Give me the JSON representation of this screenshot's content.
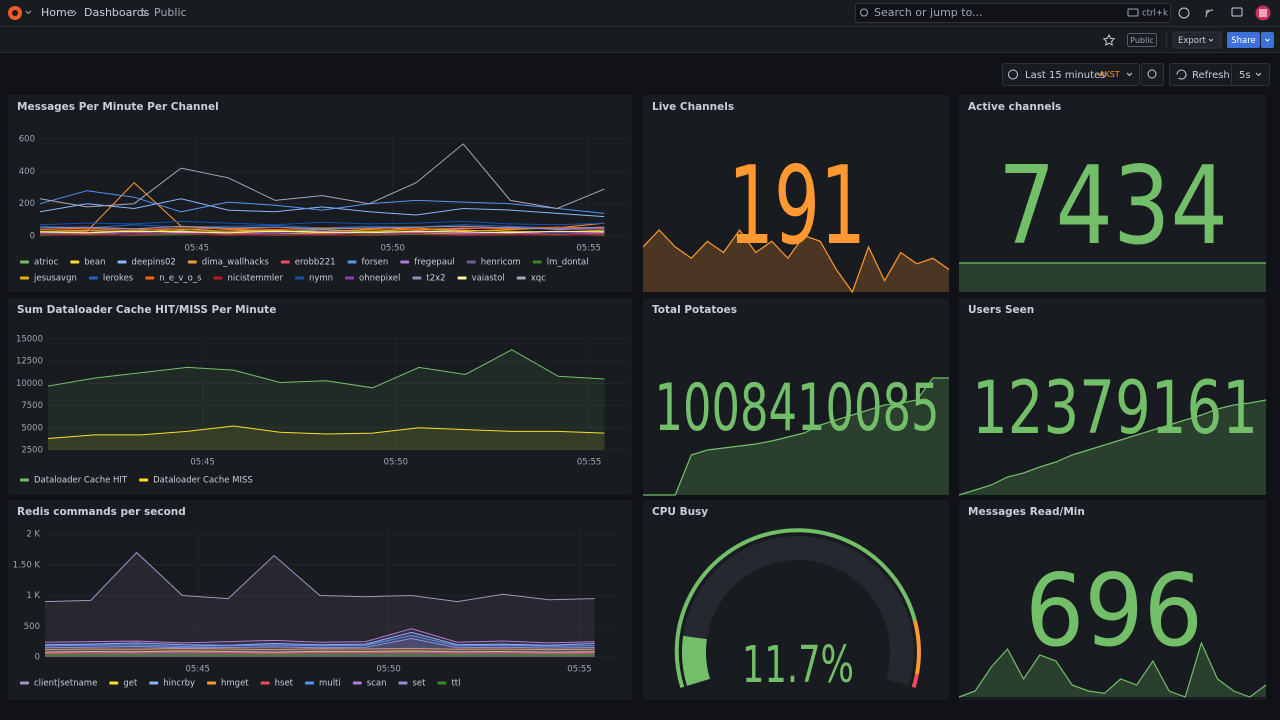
{
  "nav": {
    "breadcrumbs": [
      "Home",
      "Dashboards",
      "Public"
    ],
    "search": "Search or jump to...",
    "shortcut": "ctrl+k"
  },
  "toolbar": {
    "tag": "Public",
    "export": "Export",
    "share": "Share"
  },
  "time": {
    "range": "Last 15 minutes",
    "zone": "AKST",
    "refresh": "Refresh",
    "interval": "5s"
  },
  "panels": [
    {
      "type": "line",
      "title": "Messages Per Minute Per Channel",
      "area": false,
      "x": [
        41,
        42.2,
        43.4,
        44.6,
        45.8,
        47,
        48.2,
        49.4,
        50.6,
        51.8,
        53,
        54.2,
        55.4
      ],
      "xlim": [
        41,
        55.8
      ],
      "xticks": [
        {
          "value": 45,
          "label": "05:45"
        },
        {
          "value": 50,
          "label": "05:50"
        },
        {
          "value": 55,
          "label": "05:55"
        }
      ],
      "ylim": [
        0,
        600
      ],
      "yticks": [
        0,
        200,
        400,
        600
      ],
      "series": [
        {
          "name": "atrioc",
          "color": "#73bf69",
          "values": [
            30,
            25,
            35,
            20,
            30,
            25,
            40,
            30,
            25,
            35,
            30,
            20,
            30
          ]
        },
        {
          "name": "bean",
          "color": "#fade2a",
          "values": [
            20,
            15,
            25,
            30,
            20,
            15,
            20,
            25,
            20,
            15,
            25,
            20,
            15
          ]
        },
        {
          "name": "deepins02",
          "color": "#8ab8ff",
          "values": [
            150,
            200,
            170,
            230,
            160,
            150,
            180,
            150,
            130,
            170,
            160,
            140,
            120
          ]
        },
        {
          "name": "dima_wallhacks",
          "color": "#ff9830",
          "values": [
            20,
            30,
            330,
            60,
            40,
            30,
            30,
            40,
            50,
            30,
            40,
            50,
            80
          ]
        },
        {
          "name": "erobb221",
          "color": "#f2495c",
          "values": [
            10,
            15,
            10,
            20,
            15,
            10,
            15,
            20,
            10,
            15,
            10,
            20,
            15
          ]
        },
        {
          "name": "forsen",
          "color": "#5794f2",
          "values": [
            200,
            280,
            240,
            150,
            210,
            190,
            160,
            200,
            220,
            210,
            200,
            170,
            140
          ]
        },
        {
          "name": "fregepaul",
          "color": "#b877d9",
          "values": [
            40,
            50,
            45,
            35,
            50,
            40,
            45,
            50,
            35,
            45,
            55,
            40,
            45
          ]
        },
        {
          "name": "henricom",
          "color": "#705da0",
          "values": [
            15,
            20,
            10,
            15,
            20,
            15,
            10,
            20,
            15,
            10,
            15,
            20,
            10
          ]
        },
        {
          "name": "lm_dontal",
          "color": "#37872d",
          "values": [
            5,
            10,
            5,
            8,
            10,
            5,
            8,
            5,
            10,
            5,
            8,
            10,
            5
          ]
        },
        {
          "name": "jesusavgn",
          "color": "#e0b400",
          "values": [
            30,
            35,
            25,
            40,
            30,
            35,
            25,
            30,
            40,
            35,
            30,
            25,
            35
          ]
        },
        {
          "name": "lerokes",
          "color": "#1f60c4",
          "values": [
            60,
            50,
            70,
            55,
            60,
            65,
            50,
            60,
            55,
            70,
            60,
            50,
            55
          ]
        },
        {
          "name": "n_e_v_o_s",
          "color": "#fa6400",
          "values": [
            40,
            45,
            35,
            50,
            45,
            40,
            50,
            45,
            40,
            50,
            45,
            55,
            50
          ]
        },
        {
          "name": "nicistemmler",
          "color": "#c4162a",
          "values": [
            10,
            5,
            10,
            15,
            5,
            10,
            5,
            10,
            15,
            5,
            10,
            5,
            10
          ]
        },
        {
          "name": "nymn",
          "color": "#1250b0",
          "values": [
            70,
            80,
            75,
            90,
            80,
            70,
            85,
            75,
            80,
            90,
            75,
            70,
            80
          ]
        },
        {
          "name": "ohnepixel",
          "color": "#8f3bb8",
          "values": [
            20,
            25,
            20,
            15,
            25,
            20,
            30,
            20,
            25,
            20,
            15,
            25,
            20
          ]
        },
        {
          "name": "t2x2",
          "color": "#8f8fb8",
          "values": [
            50,
            55,
            45,
            60,
            50,
            55,
            45,
            50,
            55,
            60,
            50,
            45,
            55
          ]
        },
        {
          "name": "vaiastol",
          "color": "#fff899",
          "values": [
            25,
            20,
            30,
            25,
            20,
            30,
            25,
            20,
            30,
            25,
            20,
            30,
            25
          ]
        },
        {
          "name": "xqc",
          "color": "#a8a8b8",
          "values": [
            230,
            180,
            200,
            420,
            360,
            220,
            250,
            200,
            330,
            570,
            220,
            170,
            290
          ]
        }
      ]
    },
    {
      "type": "line",
      "title": "Sum Dataloader Cache HIT/MISS Per Minute",
      "area": true,
      "x": [
        41,
        42.2,
        43.4,
        44.6,
        45.8,
        47,
        48.2,
        49.4,
        50.6,
        51.8,
        53,
        54.2,
        55.4
      ],
      "xlim": [
        41,
        55.8
      ],
      "xticks": [
        {
          "value": 45,
          "label": "05:45"
        },
        {
          "value": 50,
          "label": "05:50"
        },
        {
          "value": 55,
          "label": "05:55"
        }
      ],
      "ylim": [
        2500,
        15000
      ],
      "yticks": [
        2500,
        5000,
        7500,
        10000,
        12500,
        15000
      ],
      "series": [
        {
          "name": "Dataloader Cache HIT",
          "color": "#73bf69",
          "values": [
            9700,
            10600,
            11200,
            11800,
            11500,
            10100,
            10300,
            9500,
            11800,
            11000,
            13800,
            10800,
            10500
          ]
        },
        {
          "name": "Dataloader Cache MISS",
          "color": "#fade2a",
          "values": [
            3800,
            4200,
            4200,
            4600,
            5200,
            4500,
            4300,
            4400,
            5000,
            4800,
            4600,
            4600,
            4400
          ]
        }
      ]
    },
    {
      "type": "line",
      "title": "Redis commands per second",
      "area": true,
      "x": [
        41,
        42.2,
        43.4,
        44.6,
        45.8,
        47,
        48.2,
        49.4,
        50.6,
        51.8,
        53,
        54.2,
        55.4
      ],
      "xlim": [
        41,
        55.8
      ],
      "xticks": [
        {
          "value": 45,
          "label": "05:45"
        },
        {
          "value": 50,
          "label": "05:50"
        },
        {
          "value": 55,
          "label": "05:55"
        }
      ],
      "ylim": [
        0,
        2000
      ],
      "yticks": [
        0,
        500,
        {
          "value": 1000,
          "label": "1 K"
        },
        {
          "value": 1500,
          "label": "1.50 K"
        },
        {
          "value": 2000,
          "label": "2 K"
        }
      ],
      "series": [
        {
          "name": "client|setname",
          "color": "#a394c8",
          "values": [
            900,
            920,
            1700,
            1000,
            950,
            1650,
            1000,
            980,
            1000,
            900,
            1020,
            930,
            950
          ]
        },
        {
          "name": "get",
          "color": "#fade2a",
          "values": [
            80,
            90,
            85,
            100,
            90,
            80,
            95,
            90,
            100,
            85,
            90,
            80,
            85
          ]
        },
        {
          "name": "hincrby",
          "color": "#8ab8ff",
          "values": [
            200,
            210,
            230,
            200,
            190,
            220,
            200,
            210,
            400,
            200,
            210,
            190,
            220
          ]
        },
        {
          "name": "hmget",
          "color": "#ff9830",
          "values": [
            120,
            130,
            125,
            140,
            130,
            120,
            135,
            130,
            140,
            125,
            130,
            120,
            125
          ]
        },
        {
          "name": "hset",
          "color": "#f2495c",
          "values": [
            60,
            70,
            65,
            80,
            70,
            60,
            75,
            70,
            80,
            65,
            70,
            60,
            65
          ]
        },
        {
          "name": "multi",
          "color": "#5794f2",
          "values": [
            180,
            190,
            200,
            170,
            185,
            195,
            180,
            190,
            350,
            180,
            190,
            175,
            185
          ]
        },
        {
          "name": "scan",
          "color": "#b877d9",
          "values": [
            240,
            250,
            260,
            230,
            250,
            270,
            240,
            250,
            460,
            240,
            260,
            230,
            250
          ]
        },
        {
          "name": "set",
          "color": "#8f8fdc",
          "values": [
            150,
            160,
            170,
            150,
            155,
            165,
            150,
            160,
            300,
            150,
            160,
            145,
            155
          ]
        },
        {
          "name": "ttl",
          "color": "#37872d",
          "values": [
            30,
            35,
            30,
            40,
            35,
            30,
            35,
            30,
            40,
            35,
            30,
            35,
            30
          ]
        }
      ]
    },
    {
      "type": "stat",
      "title": "Live Channels",
      "value": 191,
      "color": "#ff9830",
      "spark": [
        40,
        55,
        40,
        30,
        45,
        35,
        55,
        35,
        45,
        30,
        50,
        45,
        20,
        0,
        40,
        10,
        35,
        25,
        30,
        20
      ]
    },
    {
      "type": "stat",
      "title": "Active channels",
      "value": 7434,
      "color": "#73bf69",
      "spark": [
        30,
        30,
        30,
        30,
        30,
        30,
        30,
        30,
        30,
        30,
        30,
        30,
        30,
        30,
        30,
        30,
        30,
        30,
        30,
        30
      ]
    },
    {
      "type": "stat",
      "title": "Total Potatoes",
      "value": 1008410085,
      "color": "#73bf69",
      "spark": [
        0,
        0,
        0,
        40,
        45,
        47,
        49,
        51,
        54,
        58,
        62,
        70,
        75,
        80,
        85,
        90,
        92,
        95,
        117,
        117
      ]
    },
    {
      "type": "stat",
      "title": "Users Seen",
      "value": 12379161,
      "color": "#73bf69",
      "spark": [
        0,
        5,
        10,
        18,
        22,
        28,
        33,
        40,
        45,
        50,
        55,
        60,
        65,
        70,
        75,
        80,
        86,
        90,
        92,
        95
      ]
    },
    {
      "type": "gauge",
      "title": "CPU Busy",
      "value": 11.7,
      "value_label": "11.7%",
      "min": 0,
      "max": 100,
      "color": "#73bf69",
      "thresholds": [
        {
          "value": 0,
          "color": "#73bf69"
        },
        {
          "value": 85,
          "color": "#ff9830"
        },
        {
          "value": 97,
          "color": "#f2495c"
        }
      ]
    },
    {
      "type": "stat",
      "title": "Messages Read/Min",
      "value": 696,
      "color": "#73bf69",
      "spark": [
        5,
        10,
        30,
        45,
        20,
        40,
        35,
        15,
        10,
        8,
        20,
        15,
        35,
        10,
        5,
        50,
        20,
        10,
        5,
        15
      ]
    }
  ]
}
